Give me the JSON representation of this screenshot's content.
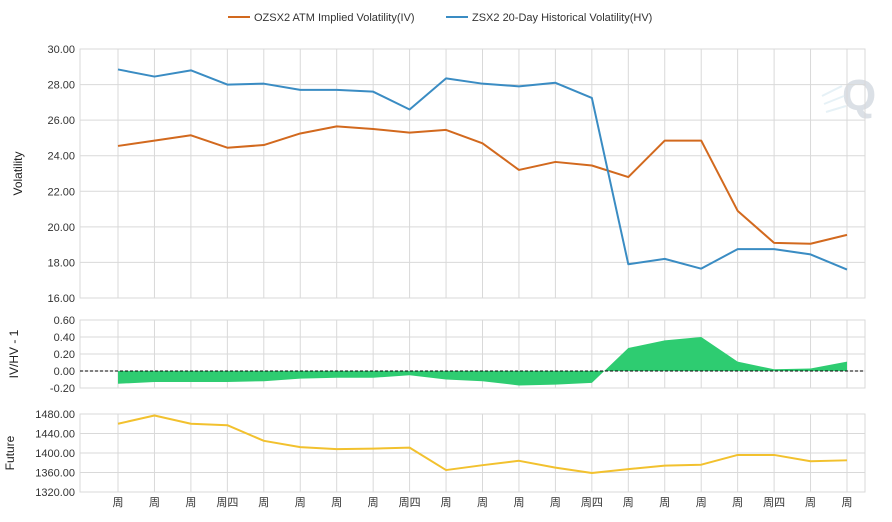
{
  "legend": {
    "iv_label": "OZSX2 ATM Implied Volatility(IV)",
    "hv_label": "ZSX2 20-Day Historical Volatility(HV)"
  },
  "colors": {
    "iv": "#d2691e",
    "hv": "#3a8cc3",
    "ratio_fill": "#2ecc71",
    "future": "#f2c12e",
    "grid": "#d9d9d9",
    "axis_text": "#333333"
  },
  "chart_data": [
    {
      "type": "line",
      "ylabel": "Volatility",
      "ylim": [
        16,
        30
      ],
      "yticks": [
        "30.00",
        "28.00",
        "26.00",
        "24.00",
        "22.00",
        "20.00",
        "18.00",
        "16.00"
      ],
      "legend_position": "top-center",
      "grid": true,
      "series": [
        {
          "name": "OZSX2 ATM Implied Volatility(IV)",
          "values": [
            24.55,
            24.85,
            25.15,
            24.45,
            24.6,
            25.25,
            25.65,
            25.5,
            25.3,
            25.45,
            24.7,
            23.2,
            23.65,
            23.45,
            22.8,
            24.85,
            24.85,
            20.9,
            19.1,
            19.05,
            19.55
          ]
        },
        {
          "name": "ZSX2 20-Day Historical Volatility(HV)",
          "values": [
            28.85,
            28.45,
            28.8,
            28.0,
            28.05,
            27.7,
            27.7,
            27.6,
            26.6,
            28.35,
            28.05,
            27.9,
            28.1,
            27.25,
            17.9,
            18.2,
            17.65,
            18.75,
            18.75,
            18.45,
            17.6
          ]
        }
      ]
    },
    {
      "type": "area",
      "ylabel": "IV/HV - 1",
      "ylim": [
        -0.2,
        0.6
      ],
      "yticks": [
        "0.60",
        "0.40",
        "0.20",
        "0.00",
        "-0.20"
      ],
      "grid": true,
      "values": [
        -0.15,
        -0.13,
        -0.13,
        -0.13,
        -0.12,
        -0.09,
        -0.08,
        -0.08,
        -0.05,
        -0.1,
        -0.12,
        -0.17,
        -0.16,
        -0.14,
        0.27,
        0.36,
        0.4,
        0.11,
        0.02,
        0.03,
        0.11
      ]
    },
    {
      "type": "line",
      "ylabel": "Future",
      "ylim": [
        1320,
        1480
      ],
      "yticks": [
        "1480.00",
        "1440.00",
        "1400.00",
        "1360.00",
        "1320.00"
      ],
      "grid": true,
      "values": [
        1460,
        1477,
        1460,
        1457,
        1425,
        1412,
        1408,
        1409,
        1411,
        1365,
        1375,
        1384,
        1370,
        1359,
        1367,
        1374,
        1376,
        1396,
        1396,
        1383,
        1385
      ]
    }
  ],
  "x_labels": [
    "周",
    "周",
    "周",
    "周四",
    "周",
    "周",
    "周",
    "周",
    "周四",
    "周",
    "周",
    "周",
    "周",
    "周四",
    "周",
    "周",
    "周",
    "周",
    "周四",
    "周",
    "周"
  ]
}
